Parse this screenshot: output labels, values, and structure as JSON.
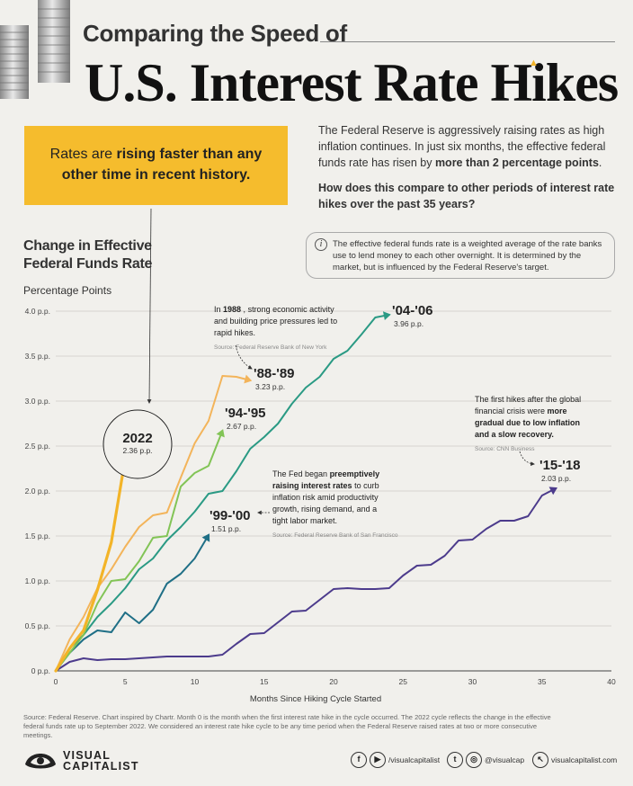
{
  "header": {
    "subtitle": "Comparing the Speed of",
    "title": "U.S. Interest Rate Hikes"
  },
  "callout": {
    "part1": "Rates are ",
    "bold1": "rising faster than any",
    "bold2": "other time in recent history."
  },
  "intro": {
    "p1_a": "The Federal Reserve is aggressively raising rates as high inflation continues. In just six months, the effective federal funds rate has risen by ",
    "p1_b": "more than 2 percentage points",
    "p1_c": ".",
    "question": "How does this compare to other periods of interest rate hikes over the past 35 years?"
  },
  "note": {
    "icon": "i",
    "text": "The effective federal funds rate is a weighted average of the rate banks use to lend money to each other overnight. It is determined by the market, but is influenced by the Federal Reserve's target."
  },
  "chart_meta": {
    "title_line1": "Change in Effective",
    "title_line2": "Federal Funds Rate",
    "unit": "Percentage Points"
  },
  "chart_data": {
    "type": "line",
    "title": "Change in Effective Federal Funds Rate",
    "ylabel": "Percentage Points",
    "xlabel": "Months Since Hiking Cycle Started",
    "xlim": [
      0,
      40
    ],
    "ylim": [
      0,
      4
    ],
    "x_ticks": [
      0,
      5,
      10,
      15,
      20,
      25,
      30,
      35,
      40
    ],
    "y_ticks": [
      0,
      0.5,
      1.0,
      1.5,
      2.0,
      2.5,
      3.0,
      3.5,
      4.0
    ],
    "y_tick_labels": [
      "0 p.p.",
      "0.5 p.p.",
      "1.0 p.p.",
      "1.5 p.p.",
      "2.0 p.p.",
      "2.5 p.p.",
      "3.0 p.p.",
      "3.5 p.p.",
      "4.0 p.p."
    ],
    "grid": "horizontal",
    "series": [
      {
        "name": "'15-'18",
        "value_label": "2.03 p.p.",
        "color": "#4c3b8c",
        "values": [
          0,
          0.1,
          0.14,
          0.12,
          0.13,
          0.13,
          0.14,
          0.15,
          0.16,
          0.16,
          0.16,
          0.16,
          0.18,
          0.3,
          0.41,
          0.42,
          0.54,
          0.66,
          0.67,
          0.79,
          0.91,
          0.92,
          0.91,
          0.91,
          0.92,
          1.06,
          1.17,
          1.18,
          1.28,
          1.45,
          1.46,
          1.58,
          1.67,
          1.67,
          1.72,
          1.95,
          2.03
        ]
      },
      {
        "name": "'99-'00",
        "value_label": "1.51 p.p.",
        "color": "#1f6f86",
        "values": [
          0,
          0.2,
          0.35,
          0.45,
          0.43,
          0.65,
          0.53,
          0.68,
          0.97,
          1.08,
          1.25,
          1.51
        ]
      },
      {
        "name": "'04-'06",
        "value_label": "3.96 p.p.",
        "color": "#2a9a84",
        "values": [
          0,
          0.25,
          0.4,
          0.6,
          0.75,
          0.92,
          1.13,
          1.25,
          1.45,
          1.6,
          1.77,
          1.97,
          2.0,
          2.22,
          2.47,
          2.6,
          2.75,
          2.97,
          3.15,
          3.27,
          3.47,
          3.56,
          3.74,
          3.93,
          3.96
        ]
      },
      {
        "name": "'94-'95",
        "value_label": "2.67 p.p.",
        "color": "#82c456",
        "values": [
          0,
          0.2,
          0.4,
          0.75,
          1.0,
          1.02,
          1.22,
          1.48,
          1.5,
          2.05,
          2.2,
          2.28,
          2.67
        ]
      },
      {
        "name": "'88-'89",
        "value_label": "3.23 p.p.",
        "color": "#f3b45a",
        "values": [
          0,
          0.35,
          0.6,
          0.92,
          1.13,
          1.38,
          1.6,
          1.73,
          1.76,
          2.15,
          2.53,
          2.78,
          3.28,
          3.27,
          3.23
        ]
      },
      {
        "name": "2022",
        "value_label": "2.36 p.p.",
        "color": "#f3b428",
        "values": [
          0,
          0.25,
          0.45,
          0.9,
          1.43,
          2.36
        ]
      }
    ],
    "annotations": [
      {
        "id": "a1988",
        "pre": "In ",
        "bold": "1988",
        "post": ", strong economic activity and building price pressures led to rapid hikes.",
        "source": "Source: Federal Reserve Bank of New York"
      },
      {
        "id": "a1999",
        "pre": "The Fed began ",
        "bold": "preemptively raising interest rates",
        "post": " to curb inflation risk amid productivity growth, rising demand, and a tight labor market.",
        "source": "Source: Federal Reserve Bank of San Francisco"
      },
      {
        "id": "a2015",
        "pre": "The first hikes after the global financial crisis were ",
        "bold": "more gradual due to low inflation and a slow recovery.",
        "post": "",
        "source": "Source: CNN Business"
      }
    ]
  },
  "footer": {
    "note": "Source: Federal Reserve. Chart inspired by Chartr. Month 0 is the month when the first interest rate hike in the cycle occurred. The 2022 cycle reflects the change in the effective federal funds rate up to September 2022. We considered an interest rate hike cycle to be any time period when the Federal Reserve raised rates at two or more consecutive meetings.",
    "brand_line1": "VISUAL",
    "brand_line2": "CAPITALIST",
    "social1": "/visualcapitalist",
    "social2": "@visualcap",
    "social3": "visualcapitalist.com"
  }
}
